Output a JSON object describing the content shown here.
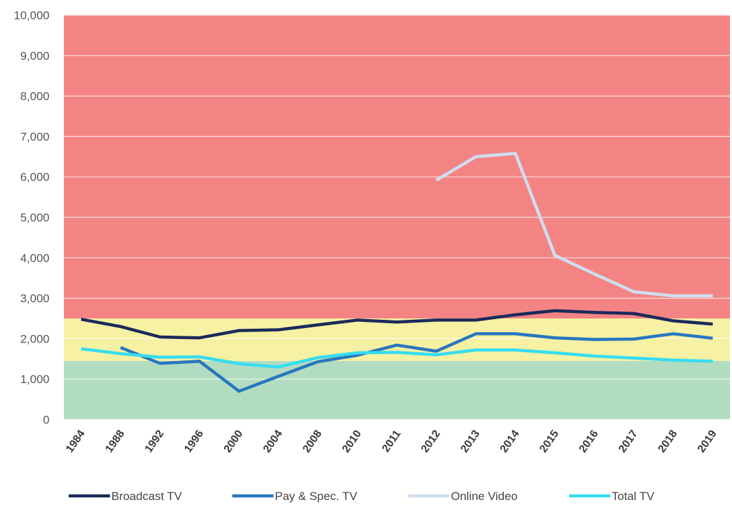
{
  "chart_data": {
    "type": "line",
    "title": "",
    "xlabel": "",
    "ylabel": "",
    "categories": [
      "1984",
      "1988",
      "1992",
      "1996",
      "2000",
      "2004",
      "2008",
      "2010",
      "2011",
      "2012",
      "2013",
      "2014",
      "2015",
      "2016",
      "2017",
      "2018",
      "2019"
    ],
    "ylim": [
      0,
      10000
    ],
    "yticks": [
      0,
      1000,
      2000,
      3000,
      4000,
      5000,
      6000,
      7000,
      8000,
      9000,
      10000
    ],
    "ytick_labels": [
      "0",
      "1,000",
      "2,000",
      "3,000",
      "4,000",
      "5,000",
      "6,000",
      "7,000",
      "8,000",
      "9,000",
      "10,000"
    ],
    "grid": true,
    "legend_position": "bottom",
    "background_bands": [
      {
        "from": 0,
        "to": 1450,
        "color": "#b2dcc0"
      },
      {
        "from": 1450,
        "to": 2500,
        "color": "#f6f1a3"
      },
      {
        "from": 2500,
        "to": 10000,
        "color": "#f48484"
      }
    ],
    "series": [
      {
        "name": "Broadcast TV",
        "color": "#1b2a5a",
        "values": [
          2480,
          2300,
          2040,
          2020,
          2200,
          2220,
          2340,
          2460,
          2410,
          2460,
          2460,
          2590,
          2690,
          2650,
          2620,
          2440,
          2360
        ]
      },
      {
        "name": "Pay & Spec. TV",
        "color": "#2876c0",
        "values": [
          null,
          1780,
          1390,
          1440,
          700,
          1070,
          1430,
          1590,
          1840,
          1690,
          2120,
          2120,
          2020,
          1980,
          1990,
          2120,
          2010
        ]
      },
      {
        "name": "Online Video",
        "color": "#cfdef0",
        "values": [
          null,
          null,
          null,
          null,
          null,
          null,
          null,
          null,
          null,
          5920,
          6500,
          6580,
          4060,
          3600,
          3160,
          3060,
          3060
        ]
      },
      {
        "name": "Total TV",
        "color": "#37dcf0",
        "values": [
          1750,
          1630,
          1540,
          1550,
          1380,
          1300,
          1530,
          1650,
          1660,
          1600,
          1720,
          1720,
          1650,
          1570,
          1520,
          1470,
          1440
        ]
      }
    ]
  }
}
